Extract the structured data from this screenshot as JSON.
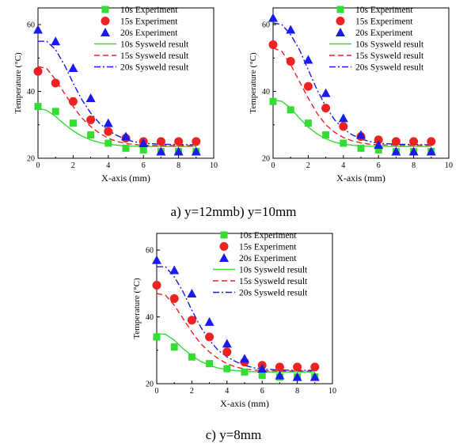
{
  "captions": {
    "ab": "a) y=12mmb) y=10mm",
    "c": "c) y=8mm"
  },
  "legend_labels": [
    "10s Experiment",
    "15s Experiment",
    "20s Experiment",
    "10s Sysweld result",
    "15s Sysweld result",
    "20s Sysweld result"
  ],
  "colors": {
    "s10": "#33dd33",
    "s15": "#ee2222",
    "s20": "#1a1aee"
  },
  "chart_data": [
    {
      "type": "scatter",
      "xlabel": "X-axis (mm)",
      "ylabel": "Temperature (°C)",
      "xlim": [
        0,
        10
      ],
      "ylim": [
        20,
        65
      ],
      "xticks": [
        0,
        2,
        4,
        6,
        8,
        10
      ],
      "yticks": [
        20,
        40,
        60
      ],
      "legend_position": "top-right",
      "experiment_x": [
        0,
        1,
        2,
        3,
        4,
        5,
        6,
        7,
        8,
        9
      ],
      "experiments": [
        {
          "name": "10s Experiment",
          "y": [
            35.5,
            34,
            30.5,
            27,
            24.5,
            23,
            22.5,
            22,
            22,
            22
          ]
        },
        {
          "name": "15s Experiment",
          "y": [
            46,
            42.5,
            37,
            31.5,
            28,
            26,
            25,
            25,
            25,
            25
          ]
        },
        {
          "name": "20s Experiment",
          "y": [
            58.5,
            55,
            47,
            38,
            30.5,
            26.5,
            24.5,
            22,
            22,
            22
          ]
        }
      ],
      "sim_x": [
        0,
        0.5,
        1,
        1.5,
        2,
        2.5,
        3,
        3.5,
        4,
        4.5,
        5,
        5.5,
        6,
        7,
        8,
        9
      ],
      "simulations": [
        {
          "name": "10s Sysweld result",
          "y": [
            35,
            34.3,
            32.5,
            30.2,
            28.2,
            26.6,
            25.5,
            24.7,
            24.2,
            23.9,
            23.7,
            23.6,
            23.5,
            23.5,
            23.5,
            23.5
          ]
        },
        {
          "name": "15s Sysweld result",
          "y": [
            47.5,
            46.8,
            43.5,
            39.5,
            35.5,
            32,
            29.5,
            27.5,
            26,
            25,
            24.4,
            24.1,
            23.9,
            23.8,
            23.8,
            23.8
          ]
        },
        {
          "name": "20s Sysweld result",
          "y": [
            55,
            55,
            52.5,
            48,
            42.5,
            37.5,
            33.5,
            30.5,
            28.3,
            26.8,
            25.6,
            24.9,
            24.5,
            24.2,
            24.1,
            24
          ]
        }
      ]
    },
    {
      "type": "scatter",
      "xlabel": "X-axis (mm)",
      "ylabel": "Temperature (°C)",
      "xlim": [
        0,
        10
      ],
      "ylim": [
        20,
        65
      ],
      "xticks": [
        0,
        2,
        4,
        6,
        8,
        10
      ],
      "yticks": [
        20,
        40,
        60
      ],
      "legend_position": "top-right",
      "experiment_x": [
        0,
        1,
        2,
        3,
        4,
        5,
        6,
        7,
        8,
        9
      ],
      "experiments": [
        {
          "name": "10s Experiment",
          "y": [
            37,
            34.5,
            30.5,
            27,
            24.5,
            23,
            22.5,
            22,
            22,
            22
          ]
        },
        {
          "name": "15s Experiment",
          "y": [
            54,
            49,
            41.5,
            35,
            29.5,
            26.5,
            25.5,
            25,
            25,
            25
          ]
        },
        {
          "name": "20s Experiment",
          "y": [
            62,
            58.5,
            49.5,
            39.5,
            32,
            27,
            24,
            22,
            22,
            22
          ]
        }
      ],
      "sim_x": [
        0,
        0.5,
        1,
        1.5,
        2,
        2.5,
        3,
        3.5,
        4,
        4.5,
        5,
        5.5,
        6,
        7,
        8,
        9
      ],
      "simulations": [
        {
          "name": "10s Sysweld result",
          "y": [
            37.5,
            37,
            35,
            32,
            29.3,
            27.3,
            25.8,
            24.8,
            24.2,
            23.9,
            23.7,
            23.6,
            23.5,
            23.5,
            23.5,
            23.5
          ]
        },
        {
          "name": "15s Sysweld result",
          "y": [
            53,
            52,
            48,
            43,
            38,
            33.5,
            30,
            27.8,
            26.2,
            25.2,
            24.6,
            24.2,
            24,
            23.9,
            23.9,
            23.9
          ]
        },
        {
          "name": "20s Sysweld result",
          "y": [
            60.5,
            60,
            57,
            52.5,
            46.5,
            40.5,
            35.5,
            31.5,
            28.8,
            27,
            25.8,
            25,
            24.5,
            24.2,
            24.1,
            24
          ]
        }
      ]
    },
    {
      "type": "scatter",
      "xlabel": "X-axis (mm)",
      "ylabel": "Temperature (°C)",
      "xlim": [
        0,
        10
      ],
      "ylim": [
        20,
        65
      ],
      "xticks": [
        0,
        2,
        4,
        6,
        8,
        10
      ],
      "yticks": [
        20,
        40,
        60
      ],
      "legend_position": "top-right",
      "experiment_x": [
        0,
        1,
        2,
        3,
        4,
        5,
        6,
        7,
        8,
        9
      ],
      "experiments": [
        {
          "name": "10s Experiment",
          "y": [
            34,
            31,
            28,
            26,
            24.5,
            23.5,
            22.5,
            22,
            22,
            22
          ]
        },
        {
          "name": "15s Experiment",
          "y": [
            49.5,
            45.5,
            39,
            34,
            29.5,
            26.5,
            25.5,
            25,
            25,
            25
          ]
        },
        {
          "name": "20s Experiment",
          "y": [
            57,
            54,
            47,
            38.5,
            32,
            27.5,
            24.5,
            22.5,
            22,
            22
          ]
        }
      ],
      "sim_x": [
        0,
        0.5,
        1,
        1.5,
        2,
        2.5,
        3,
        3.5,
        4,
        4.5,
        5,
        5.5,
        6,
        7,
        8,
        9
      ],
      "simulations": [
        {
          "name": "10s Sysweld result",
          "y": [
            35,
            34.8,
            33,
            30.5,
            28.4,
            26.7,
            25.5,
            24.7,
            24.2,
            23.9,
            23.7,
            23.6,
            23.5,
            23.5,
            23.5,
            23.5
          ]
        },
        {
          "name": "15s Sysweld result",
          "y": [
            47,
            46.5,
            43.5,
            39.5,
            35.5,
            32,
            29.5,
            27.5,
            26,
            25,
            24.4,
            24.1,
            23.9,
            23.8,
            23.8,
            23.8
          ]
        },
        {
          "name": "20s Sysweld result",
          "y": [
            55,
            55,
            52,
            47.5,
            42,
            37,
            33,
            30,
            28,
            26.6,
            25.5,
            24.8,
            24.4,
            24.1,
            24,
            24
          ]
        }
      ]
    }
  ]
}
